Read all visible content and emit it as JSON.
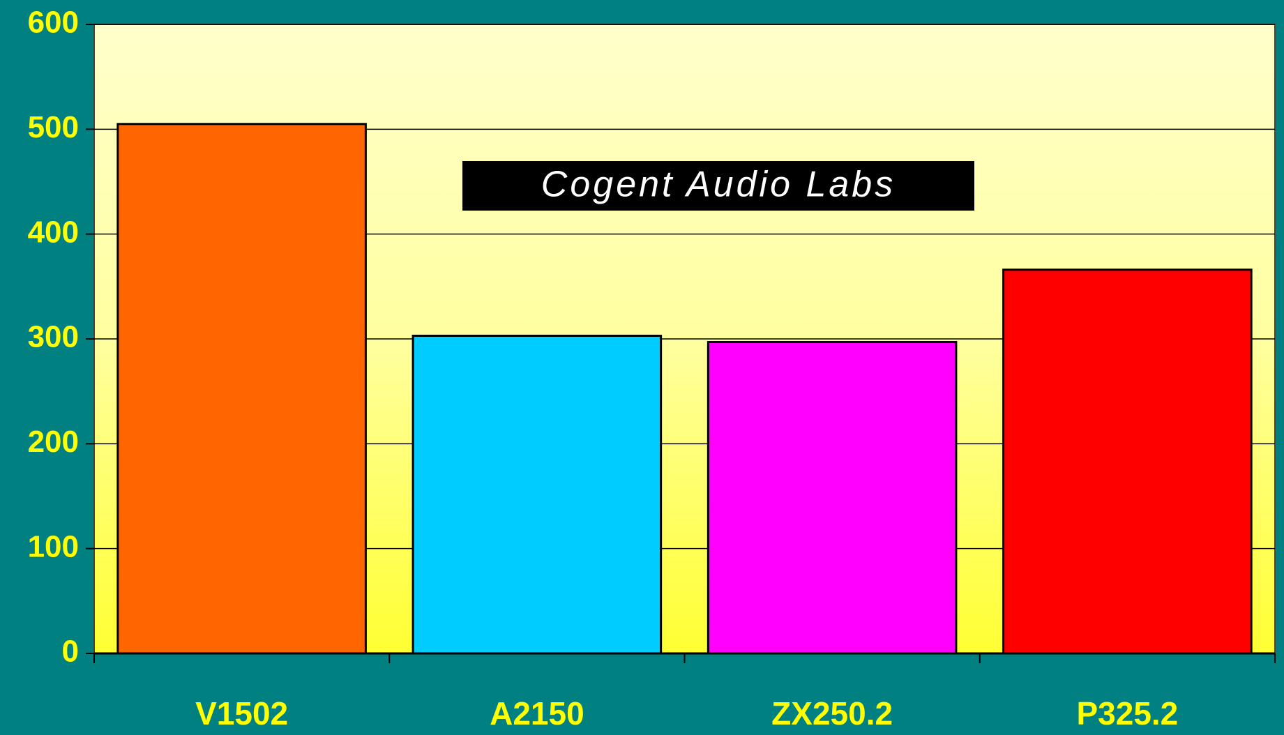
{
  "chart_data": {
    "type": "bar",
    "annotation": "Cogent Audio Labs",
    "categories": [
      "V1502",
      "A2150",
      "ZX250.2",
      "P325.2"
    ],
    "values": [
      505,
      303,
      297,
      366
    ],
    "colors": [
      "#ff6600",
      "#00ccff",
      "#ff00ff",
      "#ff0000"
    ],
    "ylim": [
      0,
      600
    ],
    "yticks": [
      0,
      100,
      200,
      300,
      400,
      500,
      600
    ],
    "grid": true
  }
}
